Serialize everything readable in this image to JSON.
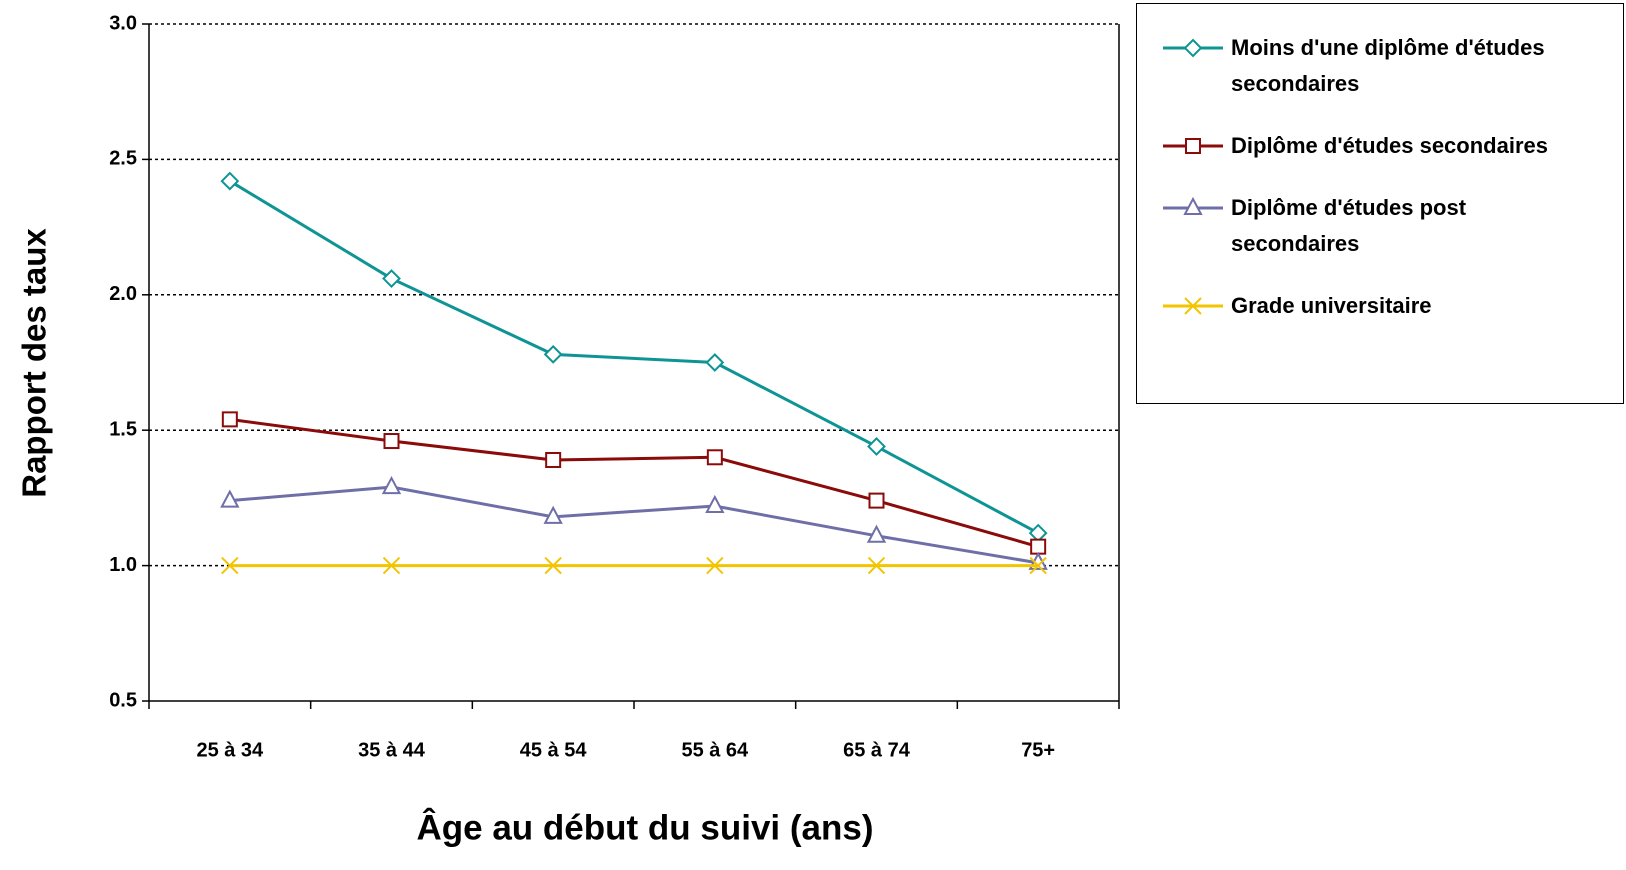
{
  "chart_data": {
    "type": "line",
    "x_label": "Âge au début du suivi (ans)",
    "y_label": "Rapport des taux",
    "categories": [
      "25 à 34",
      "35 à 44",
      "45 à 54",
      "55 à 64",
      "65 à 74",
      "75+"
    ],
    "series": [
      {
        "name": "Moins d'une diplôme d'études secondaires",
        "color": "#0e9494",
        "marker": "diamond",
        "values": [
          2.42,
          2.06,
          1.78,
          1.75,
          1.44,
          1.12
        ]
      },
      {
        "name": "Diplôme d'études secondaires",
        "color": "#8b0a0a",
        "marker": "square",
        "values": [
          1.54,
          1.46,
          1.39,
          1.4,
          1.24,
          1.07
        ]
      },
      {
        "name": "Diplôme d'études post secondaires",
        "color": "#6f6fa8",
        "marker": "triangle",
        "values": [
          1.24,
          1.29,
          1.18,
          1.22,
          1.11,
          1.01
        ]
      },
      {
        "name": "Grade universitaire",
        "color": "#f2c500",
        "marker": "x",
        "values": [
          1.0,
          1.0,
          1.0,
          1.0,
          1.0,
          1.0
        ]
      }
    ],
    "ylim": [
      0.5,
      3.0
    ],
    "yticks": [
      {
        "value": 0.5,
        "label": "0.5"
      },
      {
        "value": 1,
        "label": "1.0"
      },
      {
        "value": 1.5,
        "label": "1.5"
      },
      {
        "value": 2,
        "label": "2.0"
      },
      {
        "value": 2.5,
        "label": "2.5"
      },
      {
        "value": 3,
        "label": "3.0"
      }
    ],
    "grid": true
  }
}
